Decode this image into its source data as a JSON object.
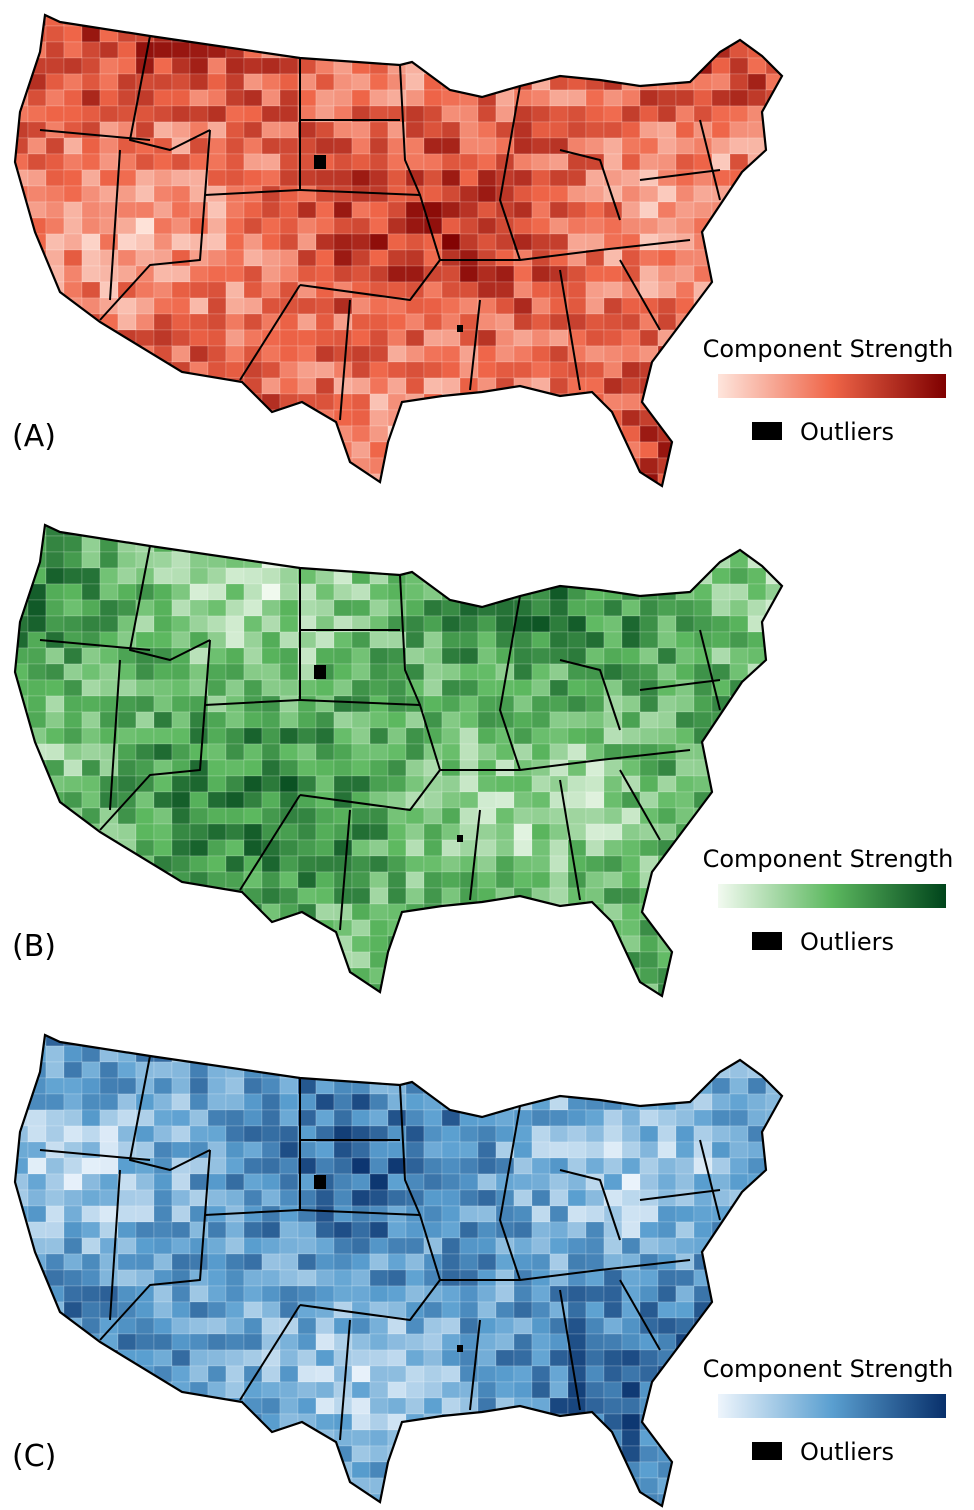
{
  "panels": [
    {
      "label": "(A)",
      "legend": {
        "title": "Component Strength",
        "outliers": "Outliers"
      },
      "colors": [
        "#fee5dc",
        "#ef6548",
        "#7f0000"
      ]
    },
    {
      "label": "(B)",
      "legend": {
        "title": "Component Strength",
        "outliers": "Outliers"
      },
      "colors": [
        "#f2faf0",
        "#5cb85f",
        "#00441b"
      ]
    },
    {
      "label": "(C)",
      "legend": {
        "title": "Component Strength",
        "outliers": "Outliers"
      },
      "colors": [
        "#eef5fc",
        "#5a9fd0",
        "#08306b"
      ]
    }
  ]
}
